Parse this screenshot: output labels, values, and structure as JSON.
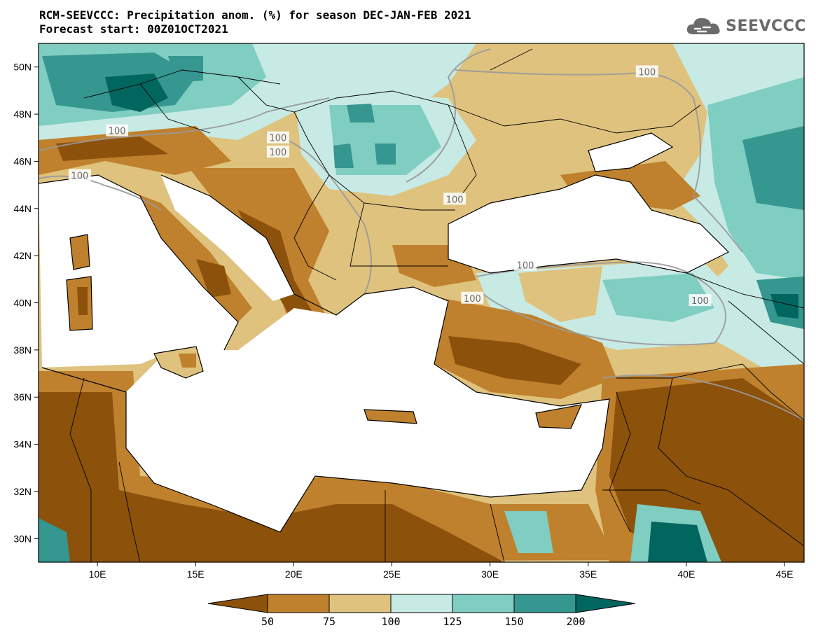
{
  "header": {
    "title_line1": "RCM-SEEVCCC: Precipitation anom. (%) for season DEC-JAN-FEB 2021",
    "title_line2": "Forecast start: 00Z01OCT2021"
  },
  "logo": {
    "text": "SEEVCCC",
    "icon": "cloud-icon",
    "color": "#6b6b6b"
  },
  "map": {
    "lon_range": [
      7,
      46
    ],
    "lat_range": [
      29,
      51
    ],
    "lon_ticks": [
      10,
      15,
      20,
      25,
      30,
      35,
      40,
      45
    ],
    "lon_tick_labels": [
      "10E",
      "15E",
      "20E",
      "25E",
      "30E",
      "35E",
      "40E",
      "45E"
    ],
    "lat_ticks": [
      30,
      32,
      34,
      36,
      38,
      40,
      42,
      44,
      46,
      48,
      50
    ],
    "lat_tick_labels": [
      "30N",
      "32N",
      "34N",
      "36N",
      "38N",
      "40N",
      "42N",
      "44N",
      "46N",
      "48N",
      "50N"
    ],
    "contour_labels": [
      {
        "text": "100",
        "lon": 11.0,
        "lat": 47.3
      },
      {
        "text": "100",
        "lon": 9.1,
        "lat": 45.4
      },
      {
        "text": "100",
        "lon": 19.2,
        "lat": 47.0
      },
      {
        "text": "100",
        "lon": 19.2,
        "lat": 46.4
      },
      {
        "text": "100",
        "lon": 28.2,
        "lat": 44.4
      },
      {
        "text": "100",
        "lon": 38.0,
        "lat": 49.8
      },
      {
        "text": "100",
        "lon": 31.8,
        "lat": 41.6
      },
      {
        "text": "100",
        "lon": 29.1,
        "lat": 40.2
      },
      {
        "text": "100",
        "lon": 40.7,
        "lat": 40.1
      }
    ]
  },
  "colorbar": {
    "boundaries": [
      "50",
      "75",
      "100",
      "125",
      "150",
      "200"
    ],
    "colors": [
      "#8c510a",
      "#bf812d",
      "#dfc27d",
      "#c7eae5",
      "#80cdc1",
      "#35978f",
      "#01665e"
    ]
  },
  "palette": {
    "very_dry": "#8c510a",
    "dry": "#bf812d",
    "slightly_dry": "#dfc27d",
    "slightly_wet": "#c7eae5",
    "wet": "#80cdc1",
    "very_wet": "#35978f",
    "extreme_wet": "#01665e",
    "sea": "#ffffff"
  }
}
